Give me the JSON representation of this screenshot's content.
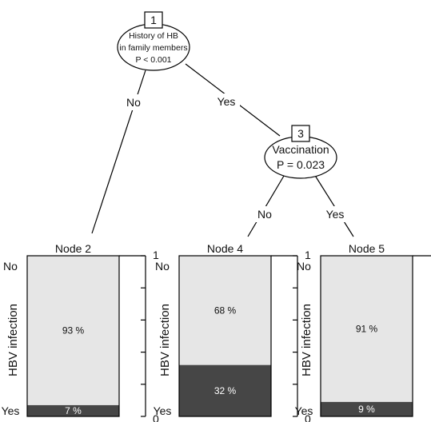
{
  "tree": {
    "node1": {
      "id": "1",
      "lines": [
        "History of HB",
        "in family members",
        "P < 0.001"
      ]
    },
    "node3": {
      "id": "3",
      "lines": [
        "Vaccination",
        "P = 0.023"
      ]
    },
    "edges": {
      "n1_left": "No",
      "n1_right": "Yes",
      "n3_left": "No",
      "n3_right": "Yes"
    }
  },
  "panels": [
    {
      "title": "Node 2",
      "no_pct": 93,
      "yes_pct": 7,
      "no_label": "93 %",
      "yes_label": "7 %"
    },
    {
      "title": "Node 4",
      "no_pct": 68,
      "yes_pct": 32,
      "no_label": "68 %",
      "yes_label": "32 %"
    },
    {
      "title": "Node 5",
      "no_pct": 91,
      "yes_pct": 9,
      "no_label": "91 %",
      "yes_label": "9 %"
    }
  ],
  "axis": {
    "ylabel": "HBV infection",
    "top_category": "No",
    "bottom_category": "Yes",
    "max_tick": "1",
    "min_tick": "0"
  },
  "colors": {
    "no_fill": "#e6e6e6",
    "yes_fill": "#464646",
    "line": "#000000"
  }
}
